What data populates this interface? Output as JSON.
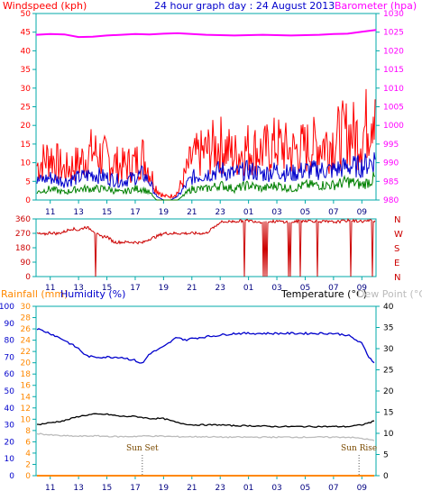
{
  "header": {
    "title": "24 hour graph day : 24 August 2013",
    "wind_label": "Windspeed (kph)",
    "baro_label": "Barometer (hpa)",
    "rain_label": "Rainfall (mm)",
    "hum_label": "Humidity (%)",
    "temp_label": "Temperature (°C)",
    "dew_label": "Dew Point (°C)"
  },
  "colors": {
    "wind_gust": "#ff0000",
    "wind_avg": "#0000cc",
    "wind_low": "#008000",
    "baro": "#ff00ff",
    "dir": "#cc0000",
    "temp": "#000000",
    "humidity": "#0000cc",
    "dew": "#bbbbbb",
    "rain": "#ff8800",
    "axis_grid": "#00aaaa"
  },
  "chart_data": [
    {
      "type": "line",
      "x_ticks": [
        "11",
        "13",
        "15",
        "17",
        "19",
        "21",
        "23",
        "01",
        "03",
        "05",
        "07",
        "09"
      ],
      "y_left": {
        "label": "Windspeed (kph)",
        "ticks": [
          "0",
          "5",
          "10",
          "15",
          "20",
          "25",
          "30",
          "35",
          "40",
          "45",
          "50"
        ],
        "range": [
          0,
          50
        ]
      },
      "y_right": {
        "label": "Barometer (hpa)",
        "ticks": [
          "980",
          "985",
          "990",
          "995",
          "1000",
          "1005",
          "1010",
          "1015",
          "1020",
          "1025",
          "1030"
        ],
        "range": [
          980,
          1030
        ]
      },
      "x_range_hours": [
        0,
        24
      ],
      "series": [
        {
          "name": "gust",
          "x": [
            0,
            1,
            2,
            3,
            4,
            5,
            6,
            7,
            7.5,
            8,
            8.5,
            9,
            9.5,
            10,
            11,
            12,
            13,
            14,
            15,
            16,
            17,
            18,
            19,
            20,
            21,
            22,
            23,
            23.5,
            24
          ],
          "y": [
            9,
            12,
            8,
            10,
            13,
            11,
            9,
            10,
            12,
            8,
            3,
            1,
            1,
            2,
            11,
            13,
            15,
            12,
            14,
            13,
            15,
            13,
            14,
            15,
            16,
            18,
            17,
            22,
            31
          ]
        },
        {
          "name": "average",
          "x": [
            0,
            1,
            2,
            3,
            4,
            5,
            6,
            7,
            7.5,
            8,
            8.5,
            9,
            9.5,
            10,
            11,
            12,
            13,
            14,
            15,
            16,
            17,
            18,
            19,
            20,
            21,
            22,
            23,
            23.5,
            24
          ],
          "y": [
            5,
            6,
            5,
            6,
            7,
            6,
            5,
            6,
            7,
            5,
            1,
            0,
            0,
            1,
            6,
            7,
            8,
            7,
            8,
            7,
            8,
            7,
            8,
            8,
            8,
            9,
            9,
            10,
            11
          ]
        },
        {
          "name": "low",
          "x": [
            0,
            1,
            2,
            3,
            4,
            5,
            6,
            7,
            7.5,
            8,
            8.5,
            9,
            9.5,
            10,
            11,
            12,
            13,
            14,
            15,
            16,
            17,
            18,
            19,
            20,
            21,
            22,
            23,
            23.5,
            24
          ],
          "y": [
            2,
            3,
            2,
            3,
            3,
            3,
            2,
            3,
            3,
            2,
            0,
            0,
            0,
            0,
            3,
            3,
            4,
            3,
            4,
            3,
            4,
            3,
            4,
            4,
            4,
            5,
            4,
            5,
            6
          ]
        },
        {
          "name": "barometer",
          "x": [
            0,
            1,
            2,
            3,
            4,
            5,
            6,
            7,
            8,
            9,
            10,
            11,
            12,
            13,
            14,
            15,
            16,
            17,
            18,
            19,
            20,
            21,
            22,
            23,
            24
          ],
          "y": [
            1024.3,
            1024.5,
            1024.4,
            1023.7,
            1023.8,
            1024.1,
            1024.3,
            1024.5,
            1024.4,
            1024.6,
            1024.7,
            1024.5,
            1024.3,
            1024.2,
            1024.1,
            1024.2,
            1024.3,
            1024.2,
            1024.1,
            1024.2,
            1024.3,
            1024.5,
            1024.6,
            1025.1,
            1025.6
          ]
        }
      ]
    },
    {
      "type": "line",
      "x_ticks": [
        "11",
        "13",
        "15",
        "17",
        "19",
        "21",
        "23",
        "01",
        "03",
        "05",
        "07",
        "09"
      ],
      "y_left": {
        "ticks": [
          "0",
          "90",
          "180",
          "270",
          "360"
        ],
        "range": [
          0,
          360
        ]
      },
      "y_right": {
        "ticks": [
          "N",
          "W",
          "S",
          "E",
          "N"
        ]
      },
      "x_range_hours": [
        0,
        24
      ],
      "series": [
        {
          "name": "direction",
          "x": [
            0,
            0.5,
            1,
            1.5,
            2,
            2.5,
            3,
            3.5,
            4,
            4.5,
            5,
            5.5,
            6,
            6.5,
            7,
            7.5,
            8,
            8.5,
            9,
            9.5,
            10,
            11,
            12,
            13,
            14,
            15,
            16,
            17,
            18,
            19,
            20,
            21,
            22,
            23,
            24
          ],
          "y": [
            270,
            262,
            275,
            268,
            280,
            300,
            290,
            310,
            290,
            250,
            250,
            215,
            215,
            215,
            215,
            210,
            235,
            250,
            270,
            270,
            270,
            270,
            270,
            340,
            345,
            350,
            340,
            345,
            340,
            350,
            345,
            340,
            350,
            345,
            350
          ]
        }
      ]
    },
    {
      "type": "line",
      "x_ticks": [
        "11",
        "13",
        "15",
        "17",
        "19",
        "21",
        "23",
        "01",
        "03",
        "05",
        "07",
        "09"
      ],
      "y_left_rain": {
        "label": "Rainfall (mm)",
        "ticks": [
          "0",
          "2",
          "4",
          "6",
          "8",
          "10",
          "12",
          "14",
          "16",
          "18",
          "20",
          "22",
          "24",
          "26",
          "28",
          "30"
        ],
        "range": [
          0,
          30
        ]
      },
      "y_left_humidity": {
        "label": "Humidity (%)",
        "ticks": [
          "0",
          "10",
          "20",
          "30",
          "40",
          "50",
          "60",
          "70",
          "80",
          "90",
          "100"
        ],
        "range": [
          0,
          100
        ]
      },
      "y_right": {
        "label": "Temperature (°C)",
        "ticks": [
          "0",
          "5",
          "10",
          "15",
          "20",
          "25",
          "30",
          "35",
          "40"
        ],
        "range": [
          0,
          40
        ]
      },
      "annotations": [
        {
          "text": "Sun Set",
          "x": 7.5
        },
        {
          "text": "Sun Rise",
          "x": 22.8
        }
      ],
      "x_range_hours": [
        0,
        24
      ],
      "series": [
        {
          "name": "humidity",
          "x": [
            0,
            1,
            2,
            3,
            3.5,
            4,
            5,
            6,
            7,
            7.5,
            8,
            9,
            10,
            10.5,
            11,
            12,
            13,
            14,
            15,
            16,
            17,
            18,
            19,
            20,
            21,
            22,
            23,
            23.5,
            24
          ],
          "y": [
            87,
            84,
            80,
            75,
            71,
            70,
            70,
            70,
            68,
            66,
            72,
            76,
            82,
            80,
            81,
            82,
            83,
            84,
            84,
            84,
            84,
            84,
            84,
            84,
            84,
            83,
            78,
            70,
            66
          ]
        },
        {
          "name": "temperature",
          "x": [
            0,
            1,
            2,
            3,
            4,
            5,
            6,
            7,
            8,
            9,
            10,
            11,
            12,
            13,
            14,
            15,
            16,
            17,
            18,
            19,
            20,
            21,
            22,
            23,
            24
          ],
          "y": [
            12,
            12.5,
            13,
            14,
            14.5,
            14.5,
            14,
            14,
            13.5,
            13.5,
            12.5,
            12,
            12,
            12,
            11.8,
            11.8,
            11.7,
            11.6,
            11.6,
            11.6,
            11.6,
            11.6,
            11.6,
            12,
            13
          ]
        },
        {
          "name": "dew point",
          "x": [
            0,
            1,
            2,
            3,
            4,
            5,
            6,
            7,
            8,
            9,
            10,
            11,
            12,
            13,
            14,
            15,
            16,
            17,
            18,
            19,
            20,
            21,
            22,
            23,
            24
          ],
          "y": [
            10,
            9.6,
            9.4,
            9.3,
            9.4,
            9.3,
            9.2,
            9.3,
            9.4,
            9.3,
            9.2,
            9.2,
            9.2,
            9.1,
            9.1,
            9.1,
            9.1,
            9.1,
            9.1,
            9.1,
            9.1,
            9.1,
            9.1,
            8.8,
            8.2
          ]
        },
        {
          "name": "rainfall",
          "x": [
            0,
            24
          ],
          "y": [
            0,
            0
          ]
        }
      ]
    }
  ]
}
